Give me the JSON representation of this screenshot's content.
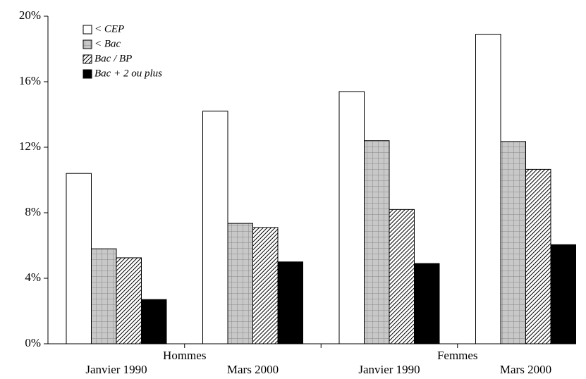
{
  "chart_data": {
    "type": "bar",
    "categories": [
      "Janvier 1990",
      "Mars 2000",
      "Janvier 1990",
      "Mars 2000"
    ],
    "group_labels": [
      "Hommes",
      "Femmes"
    ],
    "series": [
      {
        "name": "< CEP",
        "color": "#ffffff",
        "pattern": "none",
        "values": [
          10.4,
          14.2,
          15.4,
          18.9
        ]
      },
      {
        "name": "< Bac",
        "color": "#c8c8c8",
        "pattern": "grid",
        "values": [
          5.8,
          7.35,
          12.4,
          12.35
        ]
      },
      {
        "name": "Bac / BP",
        "color": "#ffffff",
        "pattern": "hatch",
        "values": [
          5.25,
          7.1,
          8.2,
          10.65
        ]
      },
      {
        "name": "Bac + 2 ou plus",
        "color": "#000000",
        "pattern": "none",
        "values": [
          2.7,
          5.0,
          4.9,
          6.05
        ]
      }
    ],
    "ylim": [
      0,
      20
    ],
    "yticks": [
      {
        "value": 0,
        "label": "0%"
      },
      {
        "value": 4,
        "label": "4%"
      },
      {
        "value": 8,
        "label": "8%"
      },
      {
        "value": 12,
        "label": "12%"
      },
      {
        "value": 16,
        "label": "16%"
      },
      {
        "value": 20,
        "label": "20%"
      }
    ],
    "legend": "top-left"
  }
}
